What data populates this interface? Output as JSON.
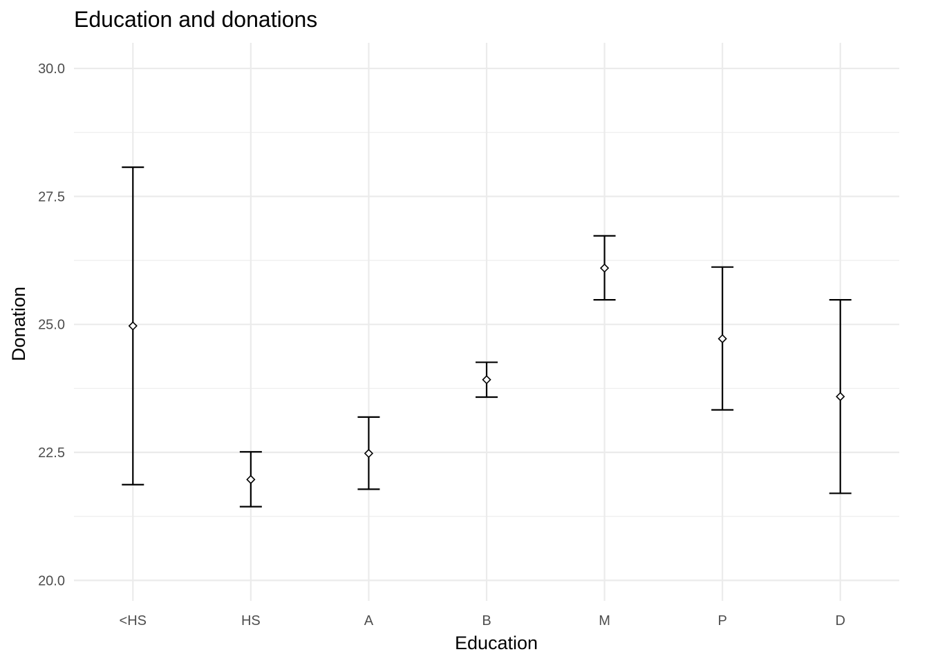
{
  "chart_data": {
    "type": "errorbar",
    "title": "Education and donations",
    "xlabel": "Education",
    "ylabel": "Donation",
    "categories": [
      "<HS",
      "HS",
      "A",
      "B",
      "M",
      "P",
      "D"
    ],
    "series": [
      {
        "means": [
          24.97,
          21.97,
          22.48,
          23.92,
          26.1,
          24.72,
          23.59
        ],
        "lower": [
          21.87,
          21.44,
          21.78,
          23.58,
          25.48,
          23.33,
          21.7
        ],
        "upper": [
          28.07,
          22.51,
          23.19,
          24.26,
          26.73,
          26.12,
          25.48
        ]
      }
    ],
    "ylim": [
      19.6,
      30.5
    ],
    "yticks": [
      20.0,
      22.5,
      25.0,
      27.5,
      30.0
    ],
    "ytick_labels": [
      "20.0",
      "22.5",
      "25.0",
      "27.5",
      "30.0"
    ],
    "grid": true,
    "legend": "none"
  },
  "colors": {
    "grid": "#ebebeb",
    "marks": "#000000",
    "tick_text": "#4d4d4d"
  }
}
